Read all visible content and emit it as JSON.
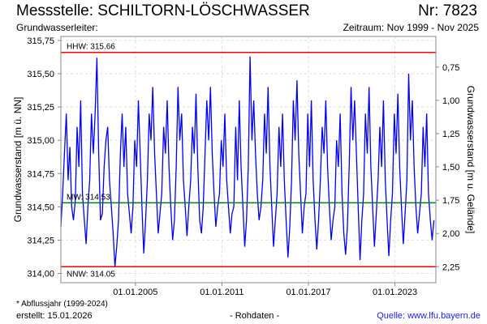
{
  "header": {
    "title": "Messstelle: SCHILTORN-LÖSCHWASSER",
    "number": "Nr: 7823",
    "aquifer": "Grundwasserleiter:",
    "period": "Zeitraum: Nov 1999 - Nov 2025"
  },
  "footer": {
    "note": "* Abflussjahr (1999-2024)",
    "created": "erstellt:  15.01.2026",
    "data_type": "- Rohdaten -",
    "source": "Quelle: www.lfu.bayern.de"
  },
  "chart_data": {
    "type": "line",
    "ylabel": "Grundwasserstand [m ü. NN]",
    "y2label": "Grundwasserstand [m u. Gelände]",
    "ylim": [
      313.93,
      315.78
    ],
    "xlim": [
      1999.83,
      2025.84
    ],
    "yticks": [
      314.0,
      314.25,
      314.5,
      314.75,
      315.0,
      315.25,
      315.5,
      315.75
    ],
    "ytick_labels": [
      "314,00",
      "314,25",
      "314,50",
      "314,75",
      "315,00",
      "315,25",
      "315,50",
      "315,75"
    ],
    "y2_ground_level": 316.3,
    "y2ticks": [
      0.75,
      1.0,
      1.25,
      1.5,
      1.75,
      2.0,
      2.25
    ],
    "y2tick_labels": [
      "0,75",
      "1,00",
      "1,25",
      "1,50",
      "1,75",
      "2,00",
      "2,25"
    ],
    "xticks": [
      2005.0,
      2011.0,
      2017.0,
      2023.0
    ],
    "xtick_labels": [
      "01.01.2005",
      "01.01.2011",
      "01.01.2017",
      "01.01.2023"
    ],
    "grid": true,
    "reference_lines": [
      {
        "label": "HHW: 315.66",
        "value": 315.66,
        "color": "#ff0000"
      },
      {
        "label": "MW: 314.53",
        "value": 314.53,
        "color": "#008000"
      },
      {
        "label": "NNW: 314.05",
        "value": 314.05,
        "color": "#ff0000"
      }
    ],
    "series": [
      {
        "name": "Grundwasserstand",
        "color": "#0000ff",
        "start": 1999.83,
        "step_years": 0.125,
        "values": [
          314.35,
          314.6,
          314.9,
          315.2,
          314.7,
          314.95,
          314.5,
          314.4,
          314.55,
          315.1,
          314.8,
          315.3,
          314.6,
          314.4,
          314.22,
          314.5,
          314.7,
          315.2,
          314.9,
          315.2,
          315.62,
          314.9,
          314.4,
          314.45,
          314.8,
          315.0,
          315.1,
          314.7,
          314.5,
          314.3,
          314.05,
          314.2,
          314.4,
          314.9,
          315.2,
          314.8,
          315.1,
          314.6,
          314.45,
          314.3,
          314.5,
          315.0,
          314.8,
          315.3,
          314.9,
          314.5,
          314.15,
          314.4,
          314.7,
          315.2,
          315.0,
          315.4,
          314.9,
          314.6,
          314.3,
          314.45,
          314.6,
          315.1,
          314.9,
          315.3,
          314.8,
          314.5,
          314.25,
          314.4,
          314.8,
          315.4,
          315.0,
          315.2,
          314.7,
          314.5,
          314.28,
          314.5,
          314.7,
          315.1,
          314.9,
          315.35,
          314.8,
          314.4,
          314.3,
          314.5,
          314.9,
          315.3,
          315.0,
          315.4,
          314.9,
          314.6,
          314.35,
          314.5,
          314.6,
          315.0,
          314.8,
          315.2,
          314.7,
          314.5,
          314.3,
          314.45,
          314.5,
          315.1,
          314.7,
          315.3,
          314.8,
          314.5,
          314.2,
          314.4,
          314.8,
          315.63,
          315.0,
          315.3,
          314.9,
          314.6,
          314.4,
          314.5,
          314.7,
          315.2,
          314.9,
          315.4,
          314.8,
          314.5,
          314.2,
          314.4,
          314.6,
          315.1,
          314.8,
          315.2,
          314.7,
          314.4,
          314.12,
          314.35,
          314.7,
          315.3,
          315.0,
          315.45,
          314.9,
          314.6,
          314.3,
          314.5,
          314.6,
          315.2,
          314.8,
          315.3,
          314.7,
          314.4,
          314.18,
          314.4,
          314.7,
          315.1,
          314.9,
          315.3,
          314.8,
          314.5,
          314.25,
          314.4,
          314.5,
          315.0,
          314.8,
          315.2,
          314.6,
          314.3,
          314.14,
          314.35,
          314.8,
          315.4,
          315.0,
          315.3,
          314.9,
          314.5,
          314.1,
          314.4,
          314.6,
          315.2,
          314.9,
          315.4,
          314.8,
          314.5,
          314.2,
          314.45,
          314.7,
          315.1,
          314.8,
          315.3,
          314.7,
          314.4,
          314.13,
          314.4,
          314.6,
          315.2,
          314.9,
          315.35,
          314.8,
          314.5,
          314.22,
          314.45,
          314.7,
          315.5,
          315.0,
          315.3,
          314.8,
          314.5,
          314.3,
          314.45,
          314.6,
          315.1,
          314.8,
          315.2,
          314.6,
          314.4,
          314.25,
          314.4
        ]
      }
    ]
  }
}
